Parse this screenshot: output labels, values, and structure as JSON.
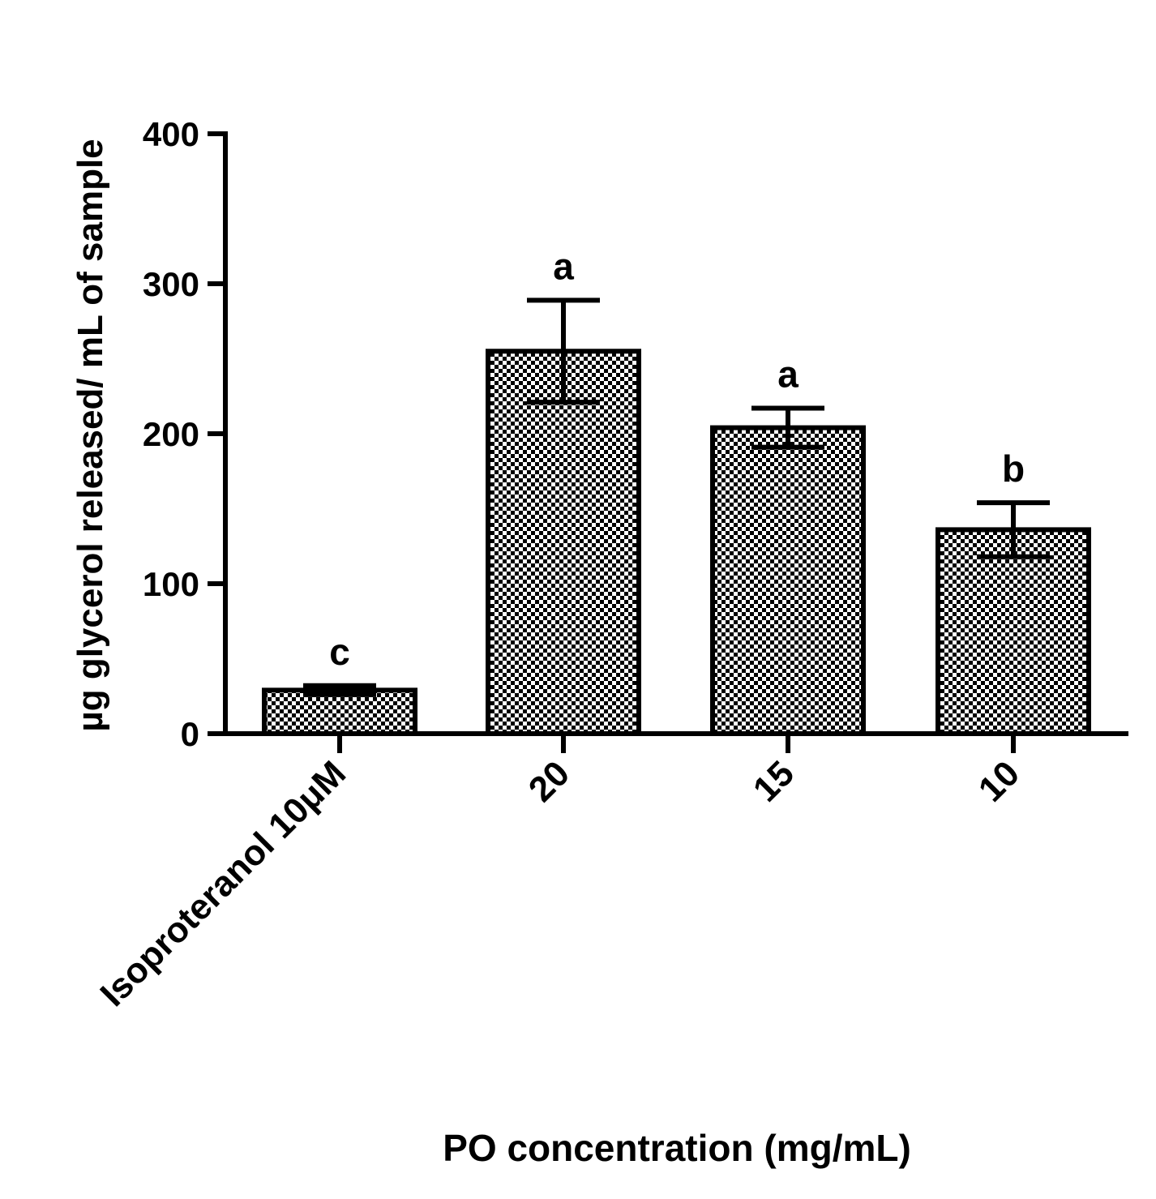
{
  "chart_data": {
    "type": "bar",
    "title": "",
    "xlabel": "PO concentration (mg/mL)",
    "ylabel": "µg glycerol released/ mL of sample",
    "categories": [
      "Isoproteranol  10μM",
      "20",
      "15",
      "10"
    ],
    "values": [
      29,
      255,
      204,
      136
    ],
    "errors": [
      3,
      34,
      13,
      18
    ],
    "significance_letters": [
      "c",
      "a",
      "a",
      "b"
    ],
    "ylim": [
      0,
      400
    ],
    "yticks": [
      0,
      100,
      200,
      300,
      400
    ],
    "grid": false,
    "legend": "none",
    "bar_pattern": "checkered"
  },
  "colors": {
    "axis": "#000000",
    "bar_outline": "#000000",
    "bar_pattern_dark": "#000000",
    "bar_pattern_light": "#ffffff",
    "background": "#ffffff"
  }
}
